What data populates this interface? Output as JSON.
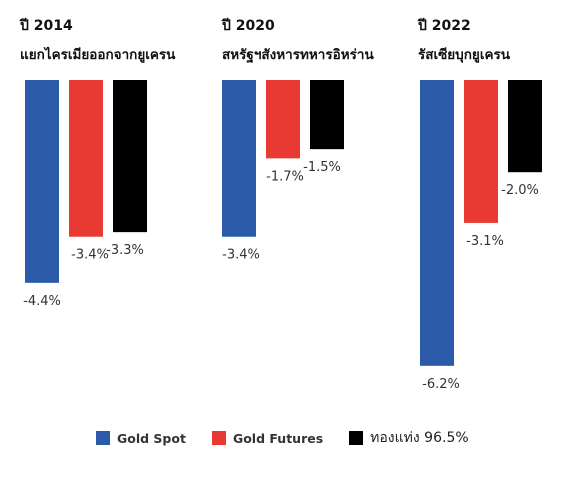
{
  "chart_data": {
    "type": "bar",
    "groups": [
      {
        "year": "ปี 2014",
        "event": "แยกไครเมียออกจากยูเครน",
        "values": [
          -4.4,
          -3.4,
          -3.3
        ],
        "labels": [
          "-4.4%",
          "-3.4%",
          "-3.3%"
        ]
      },
      {
        "year": "ปี 2020",
        "event": "สหรัฐฯสังหารทหารอิหร่าน",
        "values": [
          -3.4,
          -1.7,
          -1.5
        ],
        "labels": [
          "-3.4%",
          "-1.7%",
          "-1.5%"
        ]
      },
      {
        "year": "ปี 2022",
        "event": "รัสเซียบุกยูเครน",
        "values": [
          -6.2,
          -3.1,
          -2.0
        ],
        "labels": [
          "-6.2%",
          "-3.1%",
          "-2.0%"
        ]
      }
    ],
    "series": [
      {
        "name": "Gold Spot",
        "color": "#2b5ba8"
      },
      {
        "name": "Gold Futures",
        "color": "#e83a33"
      },
      {
        "name": "ทองแท่ง 96.5%",
        "color": "#000000"
      }
    ]
  }
}
